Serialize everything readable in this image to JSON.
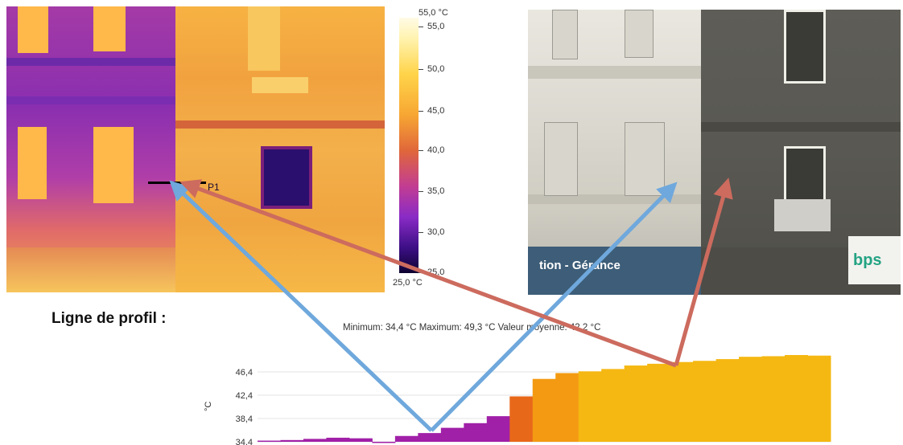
{
  "thermal_image": {
    "profile_label": "P1"
  },
  "color_scale": {
    "max_label": "55,0 °C",
    "min_label": "25,0 °C",
    "ticks": [
      "55,0",
      "50,0",
      "45,0",
      "40,0",
      "35,0",
      "30,0",
      "25,0"
    ]
  },
  "photo": {
    "shop_sign": "tion - Gérance",
    "bank_sign": "bps"
  },
  "profile": {
    "title": "Ligne de profil :",
    "stats": "Minimum: 34,4 °C Maximum: 49,3 °C Valeur moyenne: 42,2 °C"
  },
  "colors": {
    "arrow_blue": "#6fa8dc",
    "arrow_red": "#cc6b5e"
  },
  "chart_data": {
    "type": "bar",
    "ylabel": "°C",
    "ylim": [
      34.4,
      49.3
    ],
    "yticks": [
      "34,4",
      "38,4",
      "42,4",
      "46,4"
    ],
    "grid": true,
    "values": [
      34.6,
      34.7,
      34.9,
      35.1,
      35.0,
      34.4,
      35.4,
      35.9,
      36.8,
      37.6,
      38.8,
      42.2,
      45.2,
      46.2,
      46.5,
      46.9,
      47.5,
      47.8,
      48.1,
      48.3,
      48.6,
      49.0,
      49.1,
      49.3,
      49.2
    ]
  }
}
